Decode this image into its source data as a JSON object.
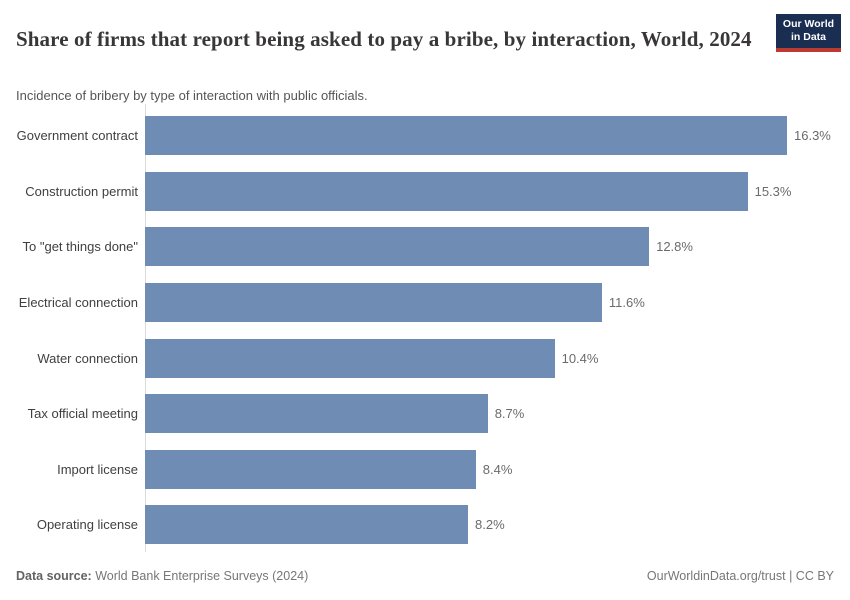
{
  "header": {
    "title": "Share of firms that report being asked to pay a bribe, by interaction, World, 2024",
    "subtitle": "Incidence of bribery by type of interaction with public officials.",
    "logo_line1": "Our World",
    "logo_line2": "in Data"
  },
  "chart_data": {
    "type": "bar",
    "orientation": "horizontal",
    "title": "Share of firms that report being asked to pay a bribe, by interaction, World, 2024",
    "categories": [
      "Government contract",
      "Construction permit",
      "To \"get things done\"",
      "Electrical connection",
      "Water connection",
      "Tax official meeting",
      "Import license",
      "Operating license"
    ],
    "values": [
      16.3,
      15.3,
      12.8,
      11.6,
      10.4,
      8.7,
      8.4,
      8.2
    ],
    "value_labels": [
      "16.3%",
      "15.3%",
      "12.8%",
      "11.6%",
      "10.4%",
      "8.7%",
      "8.4%",
      "8.2%"
    ],
    "unit": "%",
    "xlim": [
      0,
      16.3
    ],
    "grid": false,
    "legend": "none",
    "bar_color": "#6E8CB4"
  },
  "footer": {
    "source_label": "Data source:",
    "source_text": " World Bank Enterprise Surveys (2024)",
    "attribution": "OurWorldinData.org/trust | CC BY"
  },
  "colors": {
    "bar": "#6E8CB4",
    "logo_bg": "#1A2E52",
    "logo_stripe": "#BC3A32",
    "axis_line": "#DCDCDC",
    "title_text": "#383636",
    "subtitle_text": "#555555",
    "category_text": "#3F3F3F",
    "value_text": "#6B6B6B",
    "footer_text": "#777777"
  }
}
